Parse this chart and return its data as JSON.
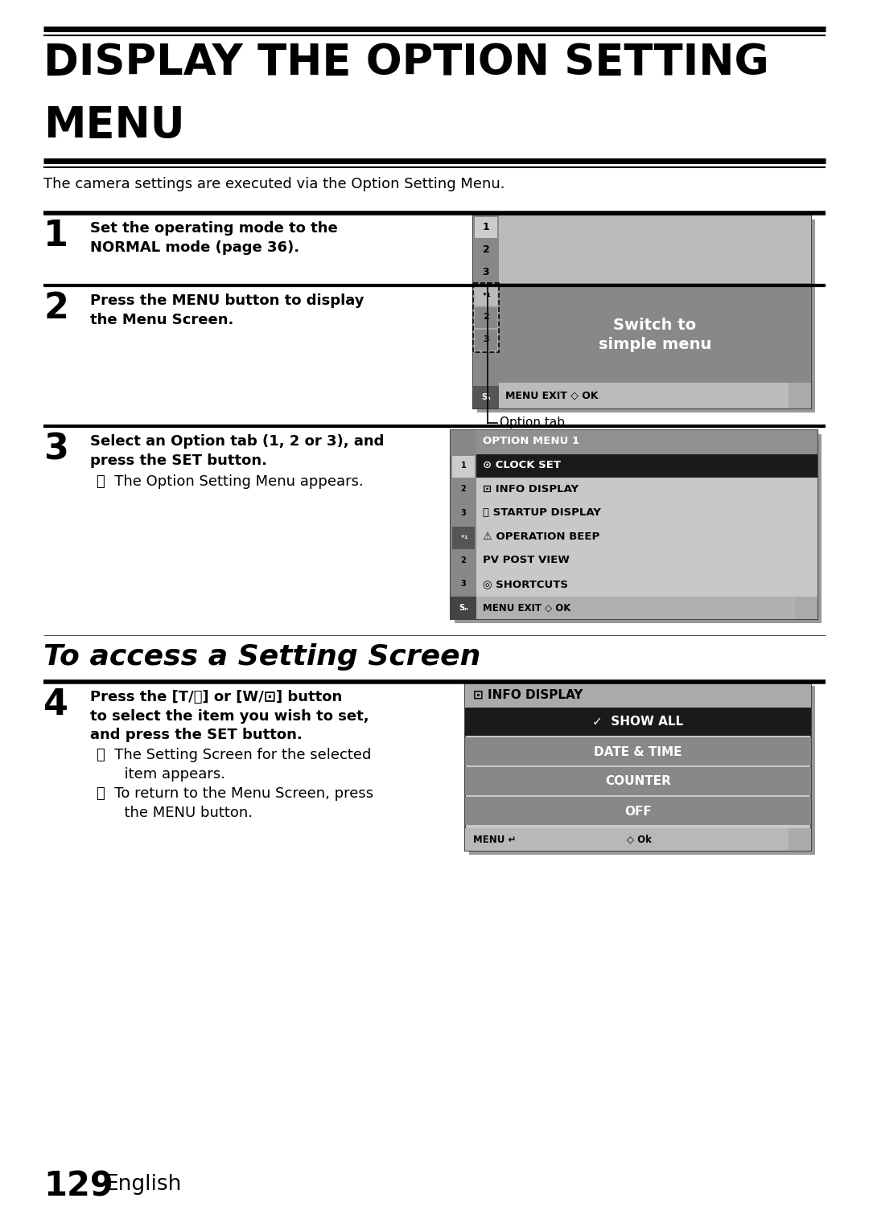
{
  "bg_color": "#ffffff",
  "title_line1": "DISPLAY THE OPTION SETTING",
  "title_line2": "MENU",
  "subtitle": "The camera settings are executed via the Option Setting Menu.",
  "step1_num": "1",
  "step2_num": "2",
  "step3_num": "3",
  "step3_bullet": "The Option Setting Menu appears.",
  "section2_title": "To access a Setting Screen",
  "step4_num": "4",
  "step4_bullet1": "The Setting Screen for the selected\nitem appears.",
  "step4_bullet2": "To return to the Menu Screen, press\nthe MENU button.",
  "page_num": "129",
  "page_lang": "English"
}
